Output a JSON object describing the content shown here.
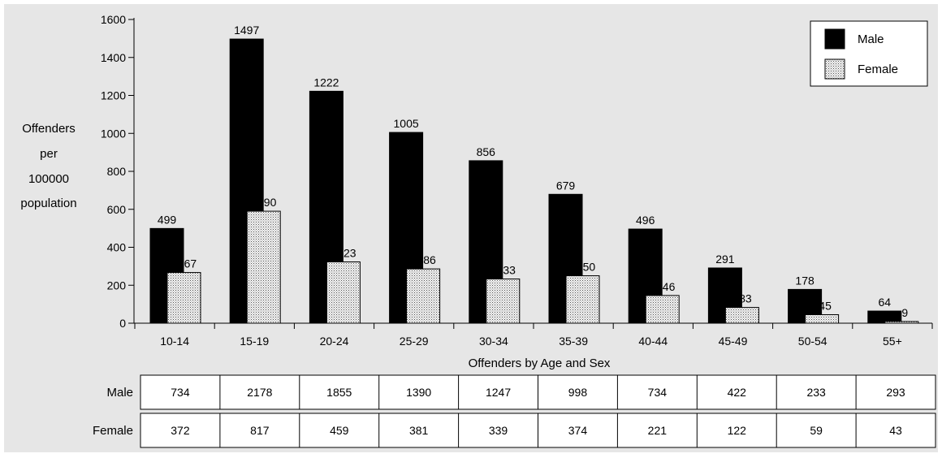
{
  "chart_data": {
    "type": "bar",
    "title": "",
    "xlabel": "Offenders by Age and Sex",
    "ylabel_lines": [
      "Offenders",
      "per",
      "100000",
      "population"
    ],
    "ylim": [
      0,
      1600
    ],
    "yticks": [
      0,
      200,
      400,
      600,
      800,
      1000,
      1200,
      1400,
      1600
    ],
    "grid": false,
    "legend_position": "top-right",
    "categories": [
      "10-14",
      "15-19",
      "20-24",
      "25-29",
      "30-34",
      "35-39",
      "40-44",
      "45-49",
      "50-54",
      "55+"
    ],
    "series": [
      {
        "name": "Male",
        "values": [
          499,
          1497,
          1222,
          1005,
          856,
          679,
          496,
          291,
          178,
          64
        ],
        "color": "#000000"
      },
      {
        "name": "Female",
        "values": [
          267,
          590,
          323,
          286,
          233,
          250,
          146,
          83,
          45,
          9
        ],
        "color": "#d9d9d9",
        "pattern": "dotted"
      }
    ]
  },
  "table": {
    "rows": [
      {
        "label": "Male",
        "values": [
          734,
          2178,
          1855,
          1390,
          1247,
          998,
          734,
          422,
          233,
          293
        ]
      },
      {
        "label": "Female",
        "values": [
          372,
          817,
          459,
          381,
          339,
          374,
          221,
          122,
          59,
          43
        ]
      }
    ]
  },
  "colors": {
    "panel_background": "#e6e6e6",
    "male_bar": "#000000",
    "female_bar_base": "#d9d9d9"
  }
}
